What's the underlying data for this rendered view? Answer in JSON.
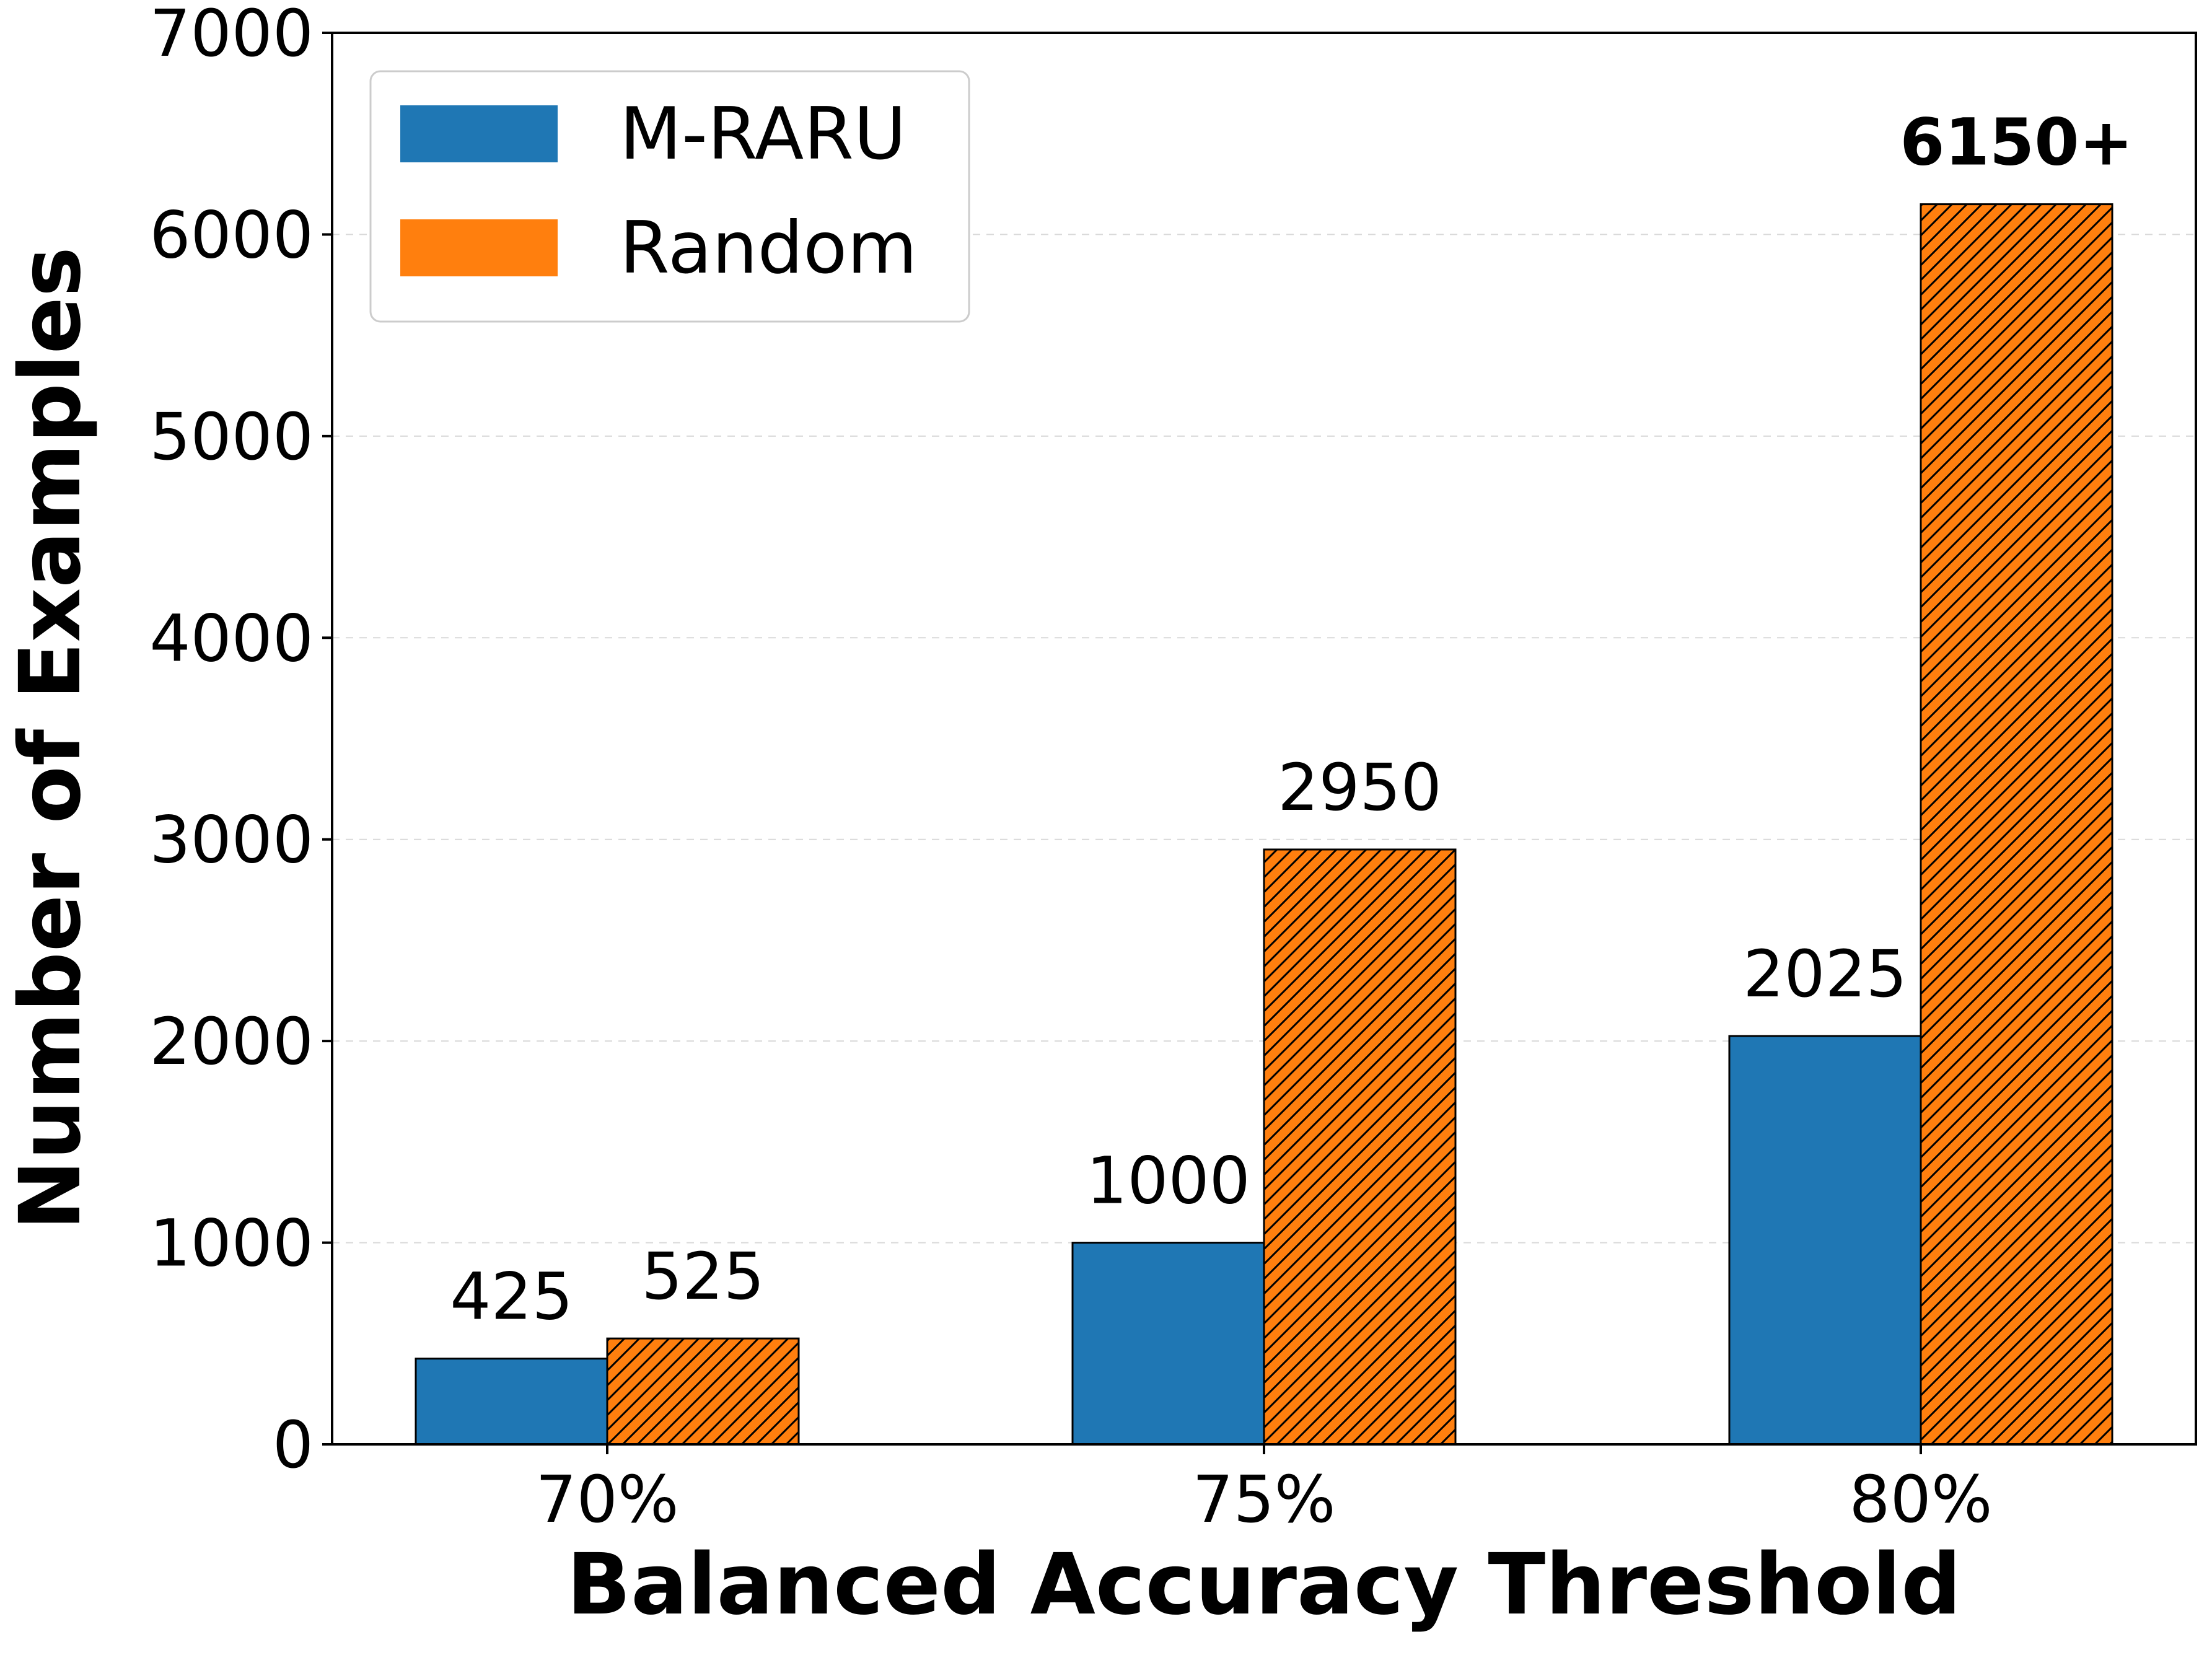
{
  "chart_data": {
    "type": "bar",
    "title": "",
    "xlabel": "Balanced Accuracy Threshold",
    "ylabel": "Number of Examples",
    "categories": [
      "70%",
      "75%",
      "80%"
    ],
    "ylim": [
      0,
      7000
    ],
    "yticks": [
      0,
      1000,
      2000,
      3000,
      4000,
      5000,
      6000,
      7000
    ],
    "grid": "horizontal-dashed",
    "legend_position": "top-left",
    "series": [
      {
        "name": "M-RARU",
        "color": "#1f77b4",
        "pattern": "solid",
        "values": [
          425,
          1000,
          2025
        ],
        "labels": [
          "425",
          "1000",
          "2025"
        ]
      },
      {
        "name": "Random",
        "color": "#ff7f0e",
        "pattern": "diagonal-hatch",
        "values": [
          525,
          2950,
          6150
        ],
        "labels": [
          "525",
          "2950",
          "6150+"
        ],
        "bold_labels": [
          false,
          false,
          true
        ]
      }
    ]
  }
}
